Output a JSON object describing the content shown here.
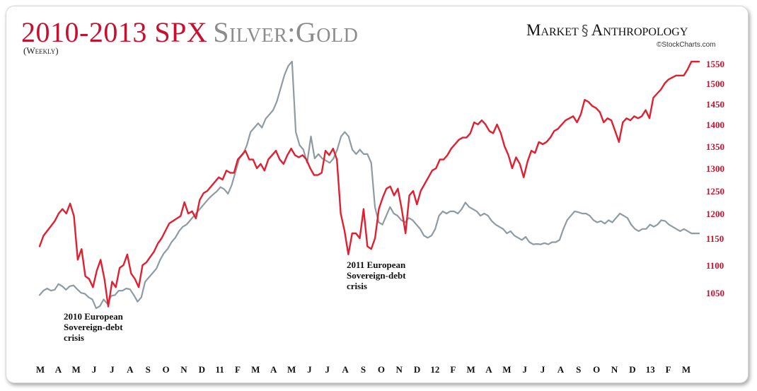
{
  "header": {
    "title_spx": "2010-2013 SPX",
    "title_silvergold": "Silver:Gold",
    "subtitle": "(Weekly)",
    "brand_left": "Market",
    "brand_right": "Anthropology",
    "credit": "©StockCharts.com"
  },
  "colors": {
    "spx": "#e02030",
    "silver_gold": "#8f9ba3",
    "tick_right": "#c8102e"
  },
  "chart_data": {
    "type": "line",
    "title": "2010-2013 SPX Silver:Gold",
    "subtitle": "(Weekly)",
    "x_tick_labels": [
      "M",
      "A",
      "M",
      "J",
      "J",
      "A",
      "S",
      "O",
      "N",
      "D",
      "11",
      "F",
      "M",
      "A",
      "M",
      "J",
      "J",
      "A",
      "S",
      "O",
      "N",
      "D",
      "12",
      "F",
      "M",
      "A",
      "M",
      "J",
      "J",
      "A",
      "S",
      "O",
      "N",
      "D",
      "13",
      "F",
      "M"
    ],
    "y_right": {
      "ticks": [
        1050,
        1100,
        1150,
        1200,
        1250,
        1300,
        1350,
        1400,
        1450,
        1500,
        1550
      ],
      "range": [
        1020,
        1575
      ]
    },
    "grid": false,
    "annotations": [
      {
        "lines": [
          "2010 European",
          "Sovereign-debt",
          "crisis"
        ],
        "x_label": "J"
      },
      {
        "lines": [
          "2011 European",
          "Sovereign-debt",
          "crisis"
        ],
        "x_label": "S"
      }
    ],
    "series": [
      {
        "name": "SPX",
        "axis": "right",
        "values": [
          1135,
          1155,
          1165,
          1175,
          1185,
          1200,
          1210,
          1200,
          1222,
          1195,
          1110,
          1130,
          1080,
          1075,
          1060,
          1090,
          1110,
          1075,
          1025,
          1070,
          1060,
          1095,
          1100,
          1120,
          1085,
          1075,
          1060,
          1100,
          1105,
          1115,
          1125,
          1140,
          1150,
          1165,
          1180,
          1185,
          1190,
          1195,
          1225,
          1200,
          1205,
          1190,
          1230,
          1245,
          1250,
          1260,
          1270,
          1280,
          1275,
          1295,
          1290,
          1290,
          1320,
          1330,
          1340,
          1320,
          1320,
          1300,
          1310,
          1295,
          1320,
          1330,
          1340,
          1320,
          1310,
          1330,
          1345,
          1330,
          1325,
          1330,
          1320,
          1300,
          1285,
          1285,
          1290,
          1340,
          1330,
          1345,
          1320,
          1200,
          1165,
          1120,
          1160,
          1160,
          1150,
          1210,
          1135,
          1130,
          1150,
          1210,
          1235,
          1255,
          1260,
          1240,
          1255,
          1210,
          1160,
          1240,
          1250,
          1220,
          1250,
          1265,
          1280,
          1295,
          1300,
          1320,
          1320,
          1330,
          1345,
          1355,
          1365,
          1370,
          1370,
          1380,
          1405,
          1400,
          1410,
          1400,
          1385,
          1380,
          1400,
          1380,
          1350,
          1330,
          1300,
          1325,
          1310,
          1280,
          1315,
          1340,
          1335,
          1360,
          1355,
          1360,
          1370,
          1385,
          1390,
          1400,
          1410,
          1415,
          1420,
          1405,
          1425,
          1460,
          1455,
          1445,
          1440,
          1430,
          1405,
          1415,
          1410,
          1385,
          1360,
          1405,
          1415,
          1410,
          1420,
          1415,
          1420,
          1435,
          1415,
          1465,
          1475,
          1485,
          1500,
          1510,
          1515,
          1520,
          1520,
          1520,
          1535,
          1555,
          1555,
          1555
        ]
      },
      {
        "name": "Silver:Gold",
        "axis": "left",
        "values": [
          0.048,
          0.049,
          0.0495,
          0.049,
          0.0492,
          0.0505,
          0.05,
          0.0492,
          0.05,
          0.0502,
          0.0493,
          0.0485,
          0.0483,
          0.0475,
          0.047,
          0.045,
          0.0455,
          0.047,
          0.046,
          0.0478,
          0.048,
          0.049,
          0.049,
          0.0495,
          0.0493,
          0.048,
          0.0465,
          0.0475,
          0.051,
          0.052,
          0.053,
          0.054,
          0.056,
          0.0575,
          0.0585,
          0.06,
          0.061,
          0.0625,
          0.0635,
          0.064,
          0.065,
          0.066,
          0.067,
          0.068,
          0.069,
          0.07,
          0.0708,
          0.0715,
          0.0725,
          0.072,
          0.071,
          0.073,
          0.076,
          0.079,
          0.08,
          0.082,
          0.085,
          0.086,
          0.087,
          0.086,
          0.088,
          0.089,
          0.09,
          0.092,
          0.095,
          0.098,
          0.1,
          0.101,
          0.085,
          0.082,
          0.081,
          0.078,
          0.084,
          0.079,
          0.08,
          0.079,
          0.0785,
          0.078,
          0.079,
          0.081,
          0.084,
          0.085,
          0.084,
          0.081,
          0.08,
          0.081,
          0.08,
          0.08,
          0.078,
          0.068,
          0.0645,
          0.064,
          0.066,
          0.068,
          0.0665,
          0.066,
          0.065,
          0.0645,
          0.0655,
          0.065,
          0.064,
          0.063,
          0.0615,
          0.061,
          0.0615,
          0.063,
          0.066,
          0.067,
          0.0665,
          0.067,
          0.067,
          0.0665,
          0.0675,
          0.069,
          0.068,
          0.0675,
          0.067,
          0.066,
          0.0665,
          0.066,
          0.0648,
          0.064,
          0.0635,
          0.063,
          0.062,
          0.0625,
          0.0615,
          0.061,
          0.0605,
          0.0612,
          0.06,
          0.0595,
          0.0596,
          0.0595,
          0.0598,
          0.0595,
          0.06,
          0.06,
          0.0605,
          0.063,
          0.065,
          0.066,
          0.067,
          0.0668,
          0.0665,
          0.0665,
          0.066,
          0.065,
          0.0645,
          0.0648,
          0.0642,
          0.065,
          0.0645,
          0.0655,
          0.0665,
          0.066,
          0.0655,
          0.064,
          0.063,
          0.0625,
          0.063,
          0.063,
          0.064,
          0.0635,
          0.064,
          0.065,
          0.0648,
          0.064,
          0.0635,
          0.063,
          0.0625,
          0.063,
          0.0625,
          0.062,
          0.062,
          0.062
        ]
      }
    ]
  }
}
